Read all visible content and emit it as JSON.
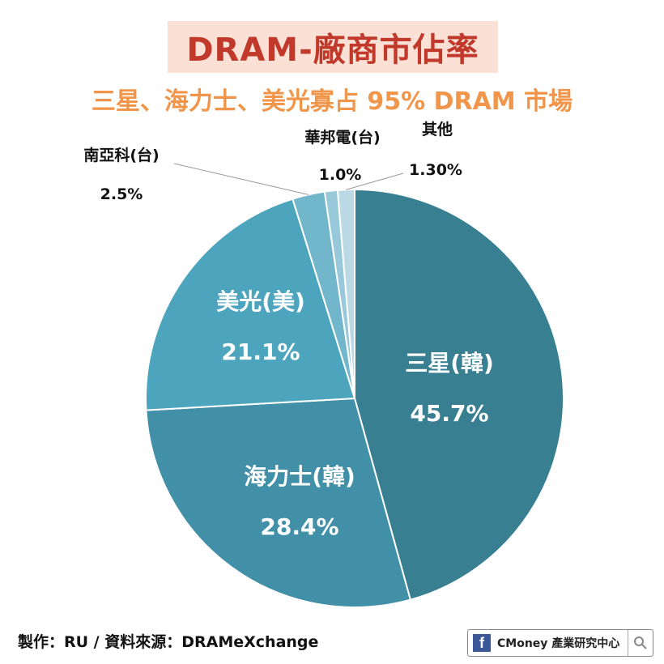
{
  "header": {
    "title": "DRAM-廠商市佔率",
    "subtitle": "三星、海力士、美光寡占 95% DRAM 市場"
  },
  "footer": {
    "credit": "製作：RU / 資料來源：DRAMeXchange",
    "brand_label": "CMoney 產業研究中心",
    "brand_icon": "facebook-icon",
    "search_icon": "search-icon"
  },
  "colors": {
    "title_text": "#c0392b",
    "title_bg": "#fbe0d5",
    "subtitle_text": "#f0954a"
  },
  "chart_data": {
    "type": "pie",
    "title": "DRAM-廠商市佔率",
    "slices": [
      {
        "label": "三星(韓)",
        "value": 45.7,
        "value_label": "45.7%",
        "color": "#387f92",
        "label_inside": true
      },
      {
        "label": "海力士(韓)",
        "value": 28.4,
        "value_label": "28.4%",
        "color": "#4290a8",
        "label_inside": true
      },
      {
        "label": "美光(美)",
        "value": 21.1,
        "value_label": "21.1%",
        "color": "#4ca5bd",
        "label_inside": true
      },
      {
        "label": "南亞科(台)",
        "value": 2.5,
        "value_label": "2.5%",
        "color": "#72b6cc",
        "label_inside": false
      },
      {
        "label": "華邦電(台)",
        "value": 1.0,
        "value_label": "1.0%",
        "color": "#98c9da",
        "label_inside": false
      },
      {
        "label": "其他",
        "value": 1.3,
        "value_label": "1.30%",
        "color": "#bad9e4",
        "label_inside": false
      }
    ]
  }
}
